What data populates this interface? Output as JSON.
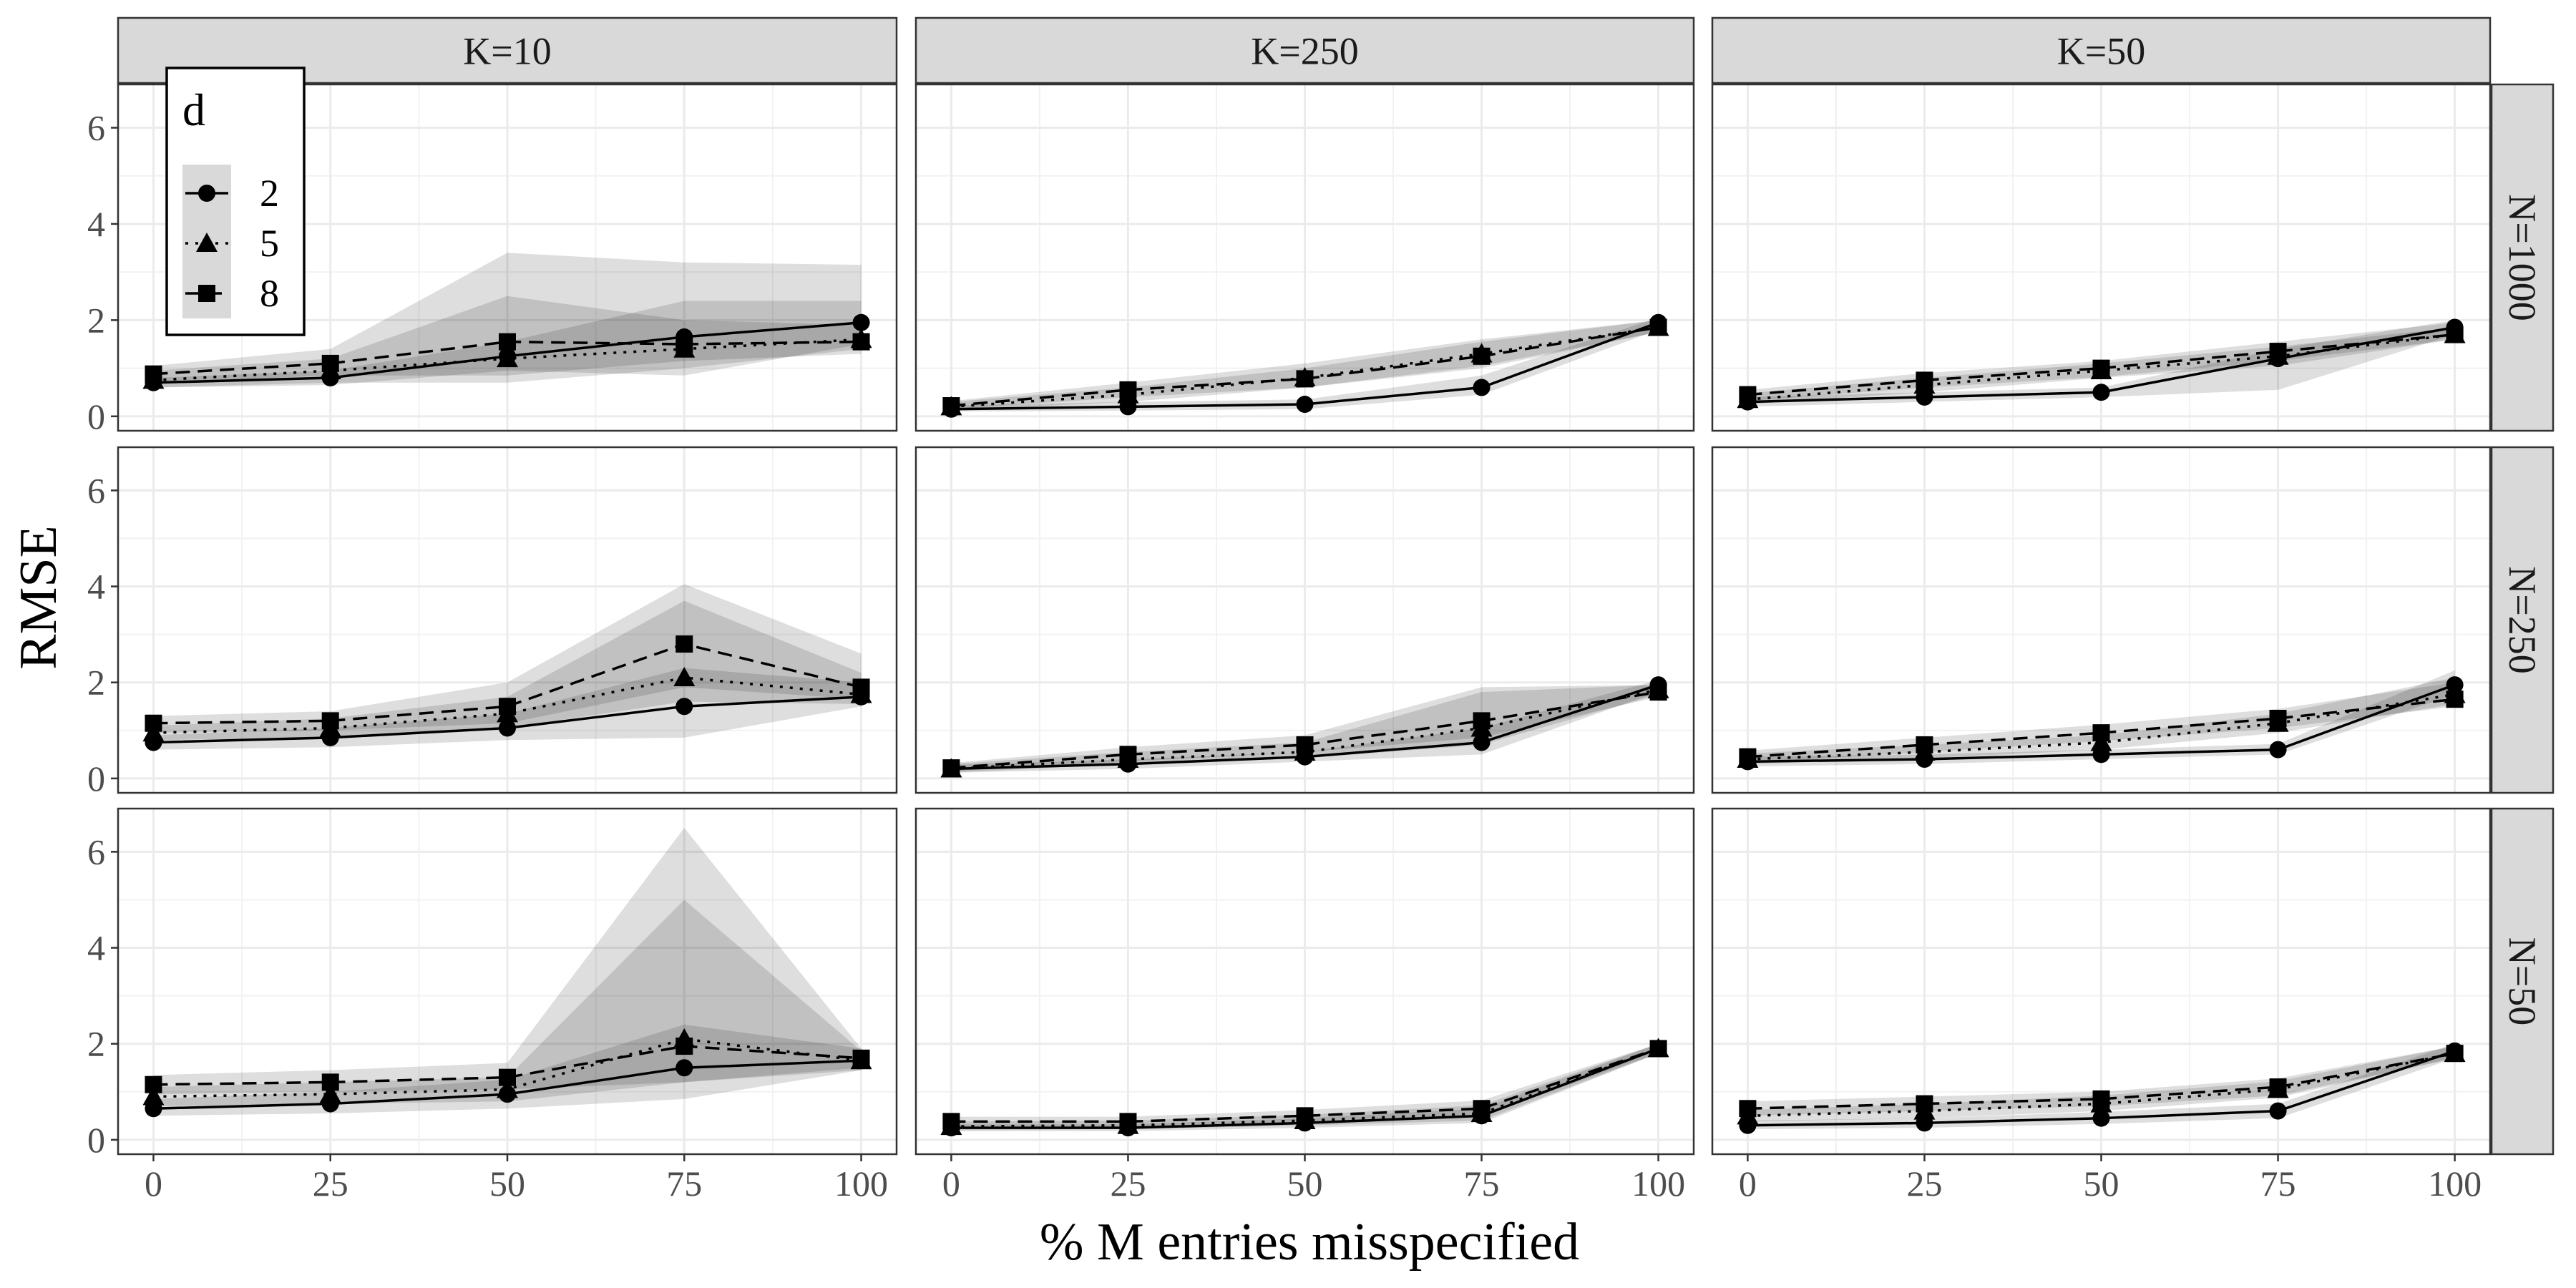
{
  "chart_data": {
    "type": "line",
    "subtype": "faceted line chart with shaded bands",
    "xlabel": "% M entries misspecified",
    "ylabel": "RMSE",
    "x": [
      0,
      25,
      50,
      75,
      100
    ],
    "xlim": [
      -5,
      105
    ],
    "ylim": [
      -0.3,
      6.9
    ],
    "x_ticks": [
      "0",
      "25",
      "50",
      "75",
      "100"
    ],
    "y_ticks": [
      "0",
      "2",
      "4",
      "6"
    ],
    "grid": true,
    "col_facets": [
      "K=10",
      "K=250",
      "K=50"
    ],
    "row_facets": [
      "N=1000",
      "N=250",
      "N=50"
    ],
    "legend": {
      "title": "d",
      "position": "top-left inside",
      "entries": [
        {
          "label": "2",
          "marker": "circle",
          "line": "solid"
        },
        {
          "label": "5",
          "marker": "triangle",
          "line": "dotted"
        },
        {
          "label": "8",
          "marker": "square",
          "line": "dashed"
        }
      ]
    },
    "panels": [
      {
        "row": "N=1000",
        "col": "K=10",
        "series": [
          {
            "name": "2",
            "values": [
              0.7,
              0.8,
              1.25,
              1.65,
              1.95
            ],
            "lower": [
              0.6,
              0.65,
              0.95,
              0.85,
              1.5
            ],
            "upper": [
              0.8,
              0.95,
              1.55,
              2.4,
              2.4
            ]
          },
          {
            "name": "5",
            "values": [
              0.75,
              0.95,
              1.2,
              1.4,
              1.6
            ],
            "lower": [
              0.6,
              0.7,
              0.7,
              1.0,
              1.4
            ],
            "upper": [
              0.95,
              1.2,
              2.5,
              2.0,
              1.9
            ]
          },
          {
            "name": "8",
            "values": [
              0.88,
              1.1,
              1.55,
              1.5,
              1.55
            ],
            "lower": [
              0.7,
              0.85,
              0.85,
              1.15,
              1.3
            ],
            "upper": [
              1.05,
              1.4,
              3.4,
              3.2,
              3.15
            ]
          }
        ]
      },
      {
        "row": "N=1000",
        "col": "K=250",
        "series": [
          {
            "name": "2",
            "values": [
              0.15,
              0.2,
              0.25,
              0.6,
              1.95
            ],
            "lower": [
              0.1,
              0.12,
              0.15,
              0.45,
              1.8
            ],
            "upper": [
              0.22,
              0.3,
              0.35,
              0.85,
              2.05
            ]
          },
          {
            "name": "5",
            "values": [
              0.2,
              0.45,
              0.8,
              1.3,
              1.85
            ],
            "lower": [
              0.12,
              0.3,
              0.6,
              1.05,
              1.75
            ],
            "upper": [
              0.3,
              0.6,
              1.0,
              1.55,
              2.0
            ]
          },
          {
            "name": "8",
            "values": [
              0.22,
              0.55,
              0.78,
              1.25,
              1.85
            ],
            "lower": [
              0.15,
              0.4,
              0.6,
              1.0,
              1.75
            ],
            "upper": [
              0.32,
              0.7,
              1.1,
              1.6,
              2.0
            ]
          }
        ]
      },
      {
        "row": "N=1000",
        "col": "K=50",
        "series": [
          {
            "name": "2",
            "values": [
              0.3,
              0.4,
              0.5,
              1.2,
              1.85
            ],
            "lower": [
              0.2,
              0.3,
              0.4,
              0.55,
              1.7
            ],
            "upper": [
              0.4,
              0.5,
              0.6,
              1.4,
              2.0
            ]
          },
          {
            "name": "5",
            "values": [
              0.35,
              0.65,
              0.95,
              1.25,
              1.7
            ],
            "lower": [
              0.25,
              0.5,
              0.8,
              1.05,
              1.6
            ],
            "upper": [
              0.48,
              0.8,
              1.1,
              1.45,
              1.85
            ]
          },
          {
            "name": "8",
            "values": [
              0.45,
              0.75,
              1.0,
              1.35,
              1.7
            ],
            "lower": [
              0.32,
              0.6,
              0.82,
              1.15,
              1.6
            ],
            "upper": [
              0.55,
              0.9,
              1.15,
              1.55,
              1.95
            ]
          }
        ]
      },
      {
        "row": "N=250",
        "col": "K=10",
        "series": [
          {
            "name": "2",
            "values": [
              0.75,
              0.85,
              1.05,
              1.5,
              1.7
            ],
            "lower": [
              0.6,
              0.65,
              0.8,
              0.85,
              1.5
            ],
            "upper": [
              0.9,
              1.05,
              1.35,
              2.3,
              2.0
            ]
          },
          {
            "name": "5",
            "values": [
              0.95,
              1.05,
              1.35,
              2.1,
              1.75
            ],
            "lower": [
              0.8,
              0.85,
              1.05,
              1.6,
              1.55
            ],
            "upper": [
              1.1,
              1.25,
              1.7,
              3.7,
              2.2
            ]
          },
          {
            "name": "8",
            "values": [
              1.15,
              1.2,
              1.5,
              2.8,
              1.9
            ],
            "lower": [
              0.95,
              1.0,
              1.15,
              1.9,
              1.65
            ],
            "upper": [
              1.3,
              1.4,
              2.0,
              4.05,
              2.6
            ]
          }
        ]
      },
      {
        "row": "N=250",
        "col": "K=250",
        "series": [
          {
            "name": "2",
            "values": [
              0.2,
              0.3,
              0.45,
              0.75,
              1.95
            ],
            "lower": [
              0.12,
              0.2,
              0.35,
              0.5,
              1.8
            ],
            "upper": [
              0.28,
              0.4,
              0.55,
              1.05,
              2.05
            ]
          },
          {
            "name": "5",
            "values": [
              0.2,
              0.4,
              0.55,
              1.05,
              1.85
            ],
            "lower": [
              0.12,
              0.3,
              0.42,
              0.7,
              1.75
            ],
            "upper": [
              0.3,
              0.55,
              0.75,
              1.8,
              1.95
            ]
          },
          {
            "name": "8",
            "values": [
              0.22,
              0.5,
              0.7,
              1.2,
              1.8
            ],
            "lower": [
              0.15,
              0.35,
              0.55,
              0.85,
              1.7
            ],
            "upper": [
              0.32,
              0.65,
              0.9,
              1.9,
              1.95
            ]
          }
        ]
      },
      {
        "row": "N=250",
        "col": "K=50",
        "series": [
          {
            "name": "2",
            "values": [
              0.35,
              0.4,
              0.5,
              0.6,
              1.95
            ],
            "lower": [
              0.25,
              0.3,
              0.4,
              0.5,
              1.75
            ],
            "upper": [
              0.45,
              0.5,
              0.6,
              0.72,
              2.25
            ]
          },
          {
            "name": "5",
            "values": [
              0.4,
              0.55,
              0.75,
              1.15,
              1.75
            ],
            "lower": [
              0.3,
              0.42,
              0.6,
              0.95,
              1.55
            ],
            "upper": [
              0.52,
              0.7,
              0.9,
              1.35,
              2.1
            ]
          },
          {
            "name": "8",
            "values": [
              0.45,
              0.7,
              0.95,
              1.25,
              1.65
            ],
            "lower": [
              0.32,
              0.55,
              0.78,
              1.05,
              1.5
            ],
            "upper": [
              0.58,
              0.85,
              1.12,
              1.45,
              2.0
            ]
          }
        ]
      },
      {
        "row": "N=50",
        "col": "K=10",
        "series": [
          {
            "name": "2",
            "values": [
              0.65,
              0.75,
              0.95,
              1.5,
              1.65
            ],
            "lower": [
              0.5,
              0.55,
              0.65,
              0.85,
              1.45
            ],
            "upper": [
              0.85,
              1.0,
              1.25,
              2.4,
              1.9
            ]
          },
          {
            "name": "5",
            "values": [
              0.9,
              0.95,
              1.05,
              2.1,
              1.65
            ],
            "lower": [
              0.7,
              0.75,
              0.8,
              1.2,
              1.45
            ],
            "upper": [
              1.1,
              1.2,
              1.3,
              5.0,
              1.85
            ]
          },
          {
            "name": "8",
            "values": [
              1.15,
              1.2,
              1.3,
              1.95,
              1.7
            ],
            "lower": [
              0.95,
              1.0,
              1.05,
              1.2,
              1.5
            ],
            "upper": [
              1.35,
              1.45,
              1.6,
              6.5,
              1.9
            ]
          }
        ]
      },
      {
        "row": "N=50",
        "col": "K=250",
        "series": [
          {
            "name": "2",
            "values": [
              0.25,
              0.25,
              0.35,
              0.5,
              1.9
            ],
            "lower": [
              0.18,
              0.18,
              0.25,
              0.35,
              1.8
            ],
            "upper": [
              0.32,
              0.32,
              0.45,
              0.65,
              2.0
            ]
          },
          {
            "name": "5",
            "values": [
              0.28,
              0.3,
              0.4,
              0.55,
              1.9
            ],
            "lower": [
              0.2,
              0.22,
              0.3,
              0.4,
              1.8
            ],
            "upper": [
              0.38,
              0.4,
              0.52,
              0.72,
              2.0
            ]
          },
          {
            "name": "8",
            "values": [
              0.38,
              0.38,
              0.5,
              0.65,
              1.9
            ],
            "lower": [
              0.28,
              0.28,
              0.38,
              0.5,
              1.8
            ],
            "upper": [
              0.48,
              0.48,
              0.62,
              0.82,
              2.0
            ]
          }
        ]
      },
      {
        "row": "N=50",
        "col": "K=50",
        "series": [
          {
            "name": "2",
            "values": [
              0.3,
              0.35,
              0.45,
              0.6,
              1.85
            ],
            "lower": [
              0.22,
              0.25,
              0.33,
              0.45,
              1.7
            ],
            "upper": [
              0.4,
              0.45,
              0.58,
              0.75,
              2.0
            ]
          },
          {
            "name": "5",
            "values": [
              0.5,
              0.6,
              0.75,
              1.05,
              1.8
            ],
            "lower": [
              0.38,
              0.45,
              0.6,
              0.88,
              1.7
            ],
            "upper": [
              0.62,
              0.75,
              0.92,
              1.22,
              1.95
            ]
          },
          {
            "name": "8",
            "values": [
              0.65,
              0.75,
              0.85,
              1.1,
              1.8
            ],
            "lower": [
              0.5,
              0.6,
              0.7,
              0.92,
              1.7
            ],
            "upper": [
              0.8,
              0.9,
              1.0,
              1.28,
              1.95
            ]
          }
        ]
      }
    ]
  }
}
